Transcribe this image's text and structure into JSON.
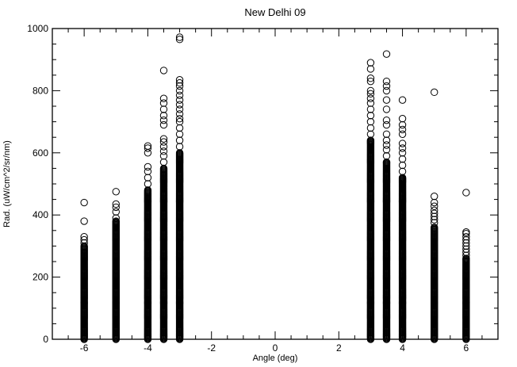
{
  "chart_data": {
    "type": "scatter",
    "title": "New Delhi 09",
    "xlabel": "Angle (deg)",
    "ylabel": "Rad. (uW/cm^2/sr/nm)",
    "xlim": [
      -7,
      7
    ],
    "ylim": [
      0,
      1000
    ],
    "x_ticks": [
      -6,
      -4,
      -2,
      0,
      2,
      4,
      6
    ],
    "x_tick_labels": [
      "-6",
      "-4",
      "-2",
      "0",
      "2",
      "4",
      "6"
    ],
    "y_ticks": [
      0,
      200,
      400,
      600,
      800,
      1000
    ],
    "y_tick_labels": [
      "0",
      "200",
      "400",
      "600",
      "800",
      "1000"
    ],
    "x_minor_step": 0.5,
    "y_minor_step": 50,
    "grid": false,
    "marker": "open-circle",
    "color": "#000000",
    "columns": [
      {
        "x": -6,
        "dense_min": 0,
        "dense_max": 300,
        "outliers": [
          310,
          320,
          330,
          380,
          440
        ]
      },
      {
        "x": -5,
        "dense_min": 0,
        "dense_max": 380,
        "outliers": [
          390,
          410,
          425,
          435,
          475
        ]
      },
      {
        "x": -4,
        "dense_min": 0,
        "dense_max": 480,
        "outliers": [
          500,
          520,
          540,
          555,
          600,
          615,
          622
        ]
      },
      {
        "x": -3.5,
        "dense_min": 0,
        "dense_max": 550,
        "outliers": [
          570,
          590,
          605,
          620,
          635,
          645,
          690,
          705,
          720,
          740,
          760,
          775,
          865
        ]
      },
      {
        "x": -3,
        "dense_min": 0,
        "dense_max": 600,
        "outliers": [
          620,
          640,
          660,
          680,
          700,
          710,
          725,
          740,
          755,
          770,
          785,
          800,
          815,
          825,
          835,
          965,
          972
        ]
      },
      {
        "x": 3,
        "dense_min": 0,
        "dense_max": 640,
        "outliers": [
          660,
          680,
          700,
          720,
          740,
          760,
          775,
          790,
          800,
          830,
          840,
          870,
          890
        ]
      },
      {
        "x": 3.5,
        "dense_min": 0,
        "dense_max": 570,
        "outliers": [
          590,
          610,
          625,
          640,
          660,
          690,
          705,
          740,
          770,
          800,
          815,
          830,
          918
        ]
      },
      {
        "x": 4,
        "dense_min": 0,
        "dense_max": 520,
        "outliers": [
          540,
          560,
          580,
          600,
          615,
          630,
          660,
          675,
          690,
          710,
          770
        ]
      },
      {
        "x": 5,
        "dense_min": 0,
        "dense_max": 360,
        "outliers": [
          375,
          385,
          395,
          405,
          415,
          428,
          440,
          460,
          795
        ]
      },
      {
        "x": 6,
        "dense_min": 0,
        "dense_max": 260,
        "outliers": [
          270,
          280,
          290,
          300,
          310,
          320,
          330,
          340,
          345,
          472
        ]
      }
    ]
  }
}
